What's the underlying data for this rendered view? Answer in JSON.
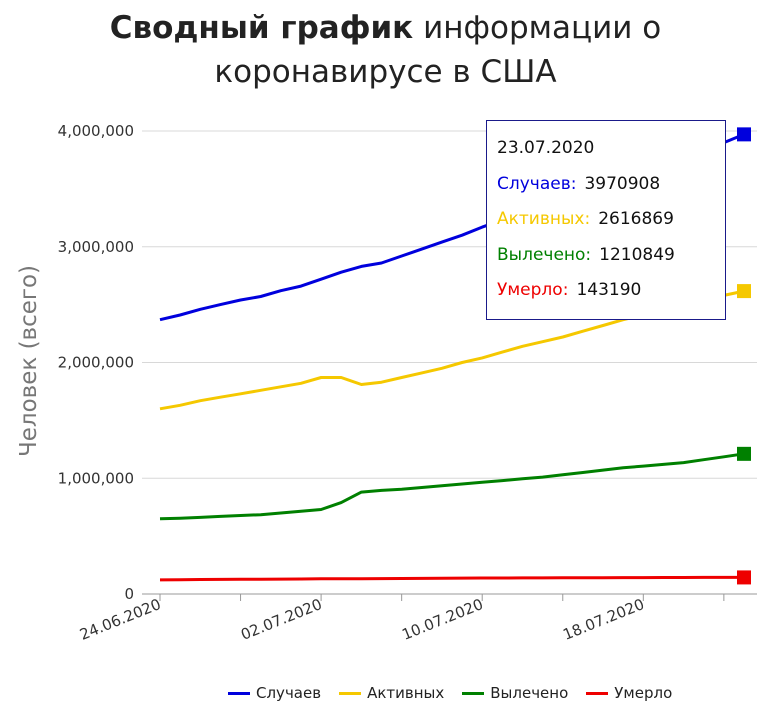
{
  "title": {
    "bold": "Сводный график",
    "rest1": " информации о",
    "rest2": "коронавирусе в США"
  },
  "chart_data": {
    "type": "line",
    "ylabel": "Человек (всего)",
    "xlabel": "",
    "ylim": [
      0,
      4000000
    ],
    "yticks": [
      "0",
      "1,000,000",
      "2,000,000",
      "3,000,000",
      "4,000,000"
    ],
    "xticks": [
      "24.06.2020",
      "02.07.2020",
      "10.07.2020",
      "18.07.2020"
    ],
    "grid": true,
    "legend_position": "bottom",
    "x": [
      "24.06.2020",
      "25.06.2020",
      "26.06.2020",
      "27.06.2020",
      "28.06.2020",
      "29.06.2020",
      "30.06.2020",
      "01.07.2020",
      "02.07.2020",
      "03.07.2020",
      "04.07.2020",
      "05.07.2020",
      "06.07.2020",
      "07.07.2020",
      "08.07.2020",
      "09.07.2020",
      "10.07.2020",
      "11.07.2020",
      "12.07.2020",
      "13.07.2020",
      "14.07.2020",
      "15.07.2020",
      "16.07.2020",
      "17.07.2020",
      "18.07.2020",
      "19.07.2020",
      "20.07.2020",
      "21.07.2020",
      "22.07.2020",
      "23.07.2020"
    ],
    "series": [
      {
        "name": "Случаев",
        "color": "#0000dd",
        "values": [
          2370000,
          2410000,
          2460000,
          2500000,
          2540000,
          2570000,
          2620000,
          2660000,
          2720000,
          2780000,
          2830000,
          2860000,
          2920000,
          2980000,
          3040000,
          3100000,
          3170000,
          3230000,
          3290000,
          3350000,
          3410000,
          3470000,
          3530000,
          3590000,
          3650000,
          3710000,
          3770000,
          3830000,
          3900000,
          3970908
        ]
      },
      {
        "name": "Активных",
        "color": "#f5c800",
        "values": [
          1600000,
          1630000,
          1670000,
          1700000,
          1730000,
          1760000,
          1790000,
          1820000,
          1870000,
          1870000,
          1810000,
          1830000,
          1870000,
          1910000,
          1950000,
          2000000,
          2040000,
          2090000,
          2140000,
          2180000,
          2220000,
          2270000,
          2320000,
          2370000,
          2410000,
          2460000,
          2500000,
          2540000,
          2580000,
          2616869
        ]
      },
      {
        "name": "Вылечено",
        "color": "#008000",
        "values": [
          650000,
          655000,
          662000,
          670000,
          678000,
          685000,
          700000,
          715000,
          730000,
          790000,
          880000,
          895000,
          905000,
          920000,
          935000,
          950000,
          965000,
          980000,
          995000,
          1010000,
          1030000,
          1050000,
          1070000,
          1090000,
          1105000,
          1120000,
          1135000,
          1160000,
          1185000,
          1210849
        ]
      },
      {
        "name": "Умерло",
        "color": "#ee0000",
        "values": [
          122000,
          123500,
          125000,
          126000,
          127000,
          128000,
          129000,
          130000,
          131500,
          132000,
          132500,
          133000,
          134000,
          135000,
          136000,
          137000,
          138000,
          138500,
          139000,
          139500,
          140000,
          140500,
          141000,
          141500,
          142000,
          142500,
          142800,
          143000,
          143100,
          143190
        ]
      }
    ]
  },
  "tooltip": {
    "date": "23.07.2020",
    "rows": [
      {
        "label": "Случаев:",
        "value": "3970908",
        "color": "#0000dd"
      },
      {
        "label": "Активных:",
        "value": "2616869",
        "color": "#f5c800"
      },
      {
        "label": "Вылечено:",
        "value": "1210849",
        "color": "#008000"
      },
      {
        "label": "Умерло:",
        "value": "143190",
        "color": "#ee0000"
      }
    ]
  },
  "legend": [
    {
      "label": "Случаев",
      "color": "#0000dd"
    },
    {
      "label": "Активных",
      "color": "#f5c800"
    },
    {
      "label": "Вылечено",
      "color": "#008000"
    },
    {
      "label": "Умерло",
      "color": "#ee0000"
    }
  ]
}
